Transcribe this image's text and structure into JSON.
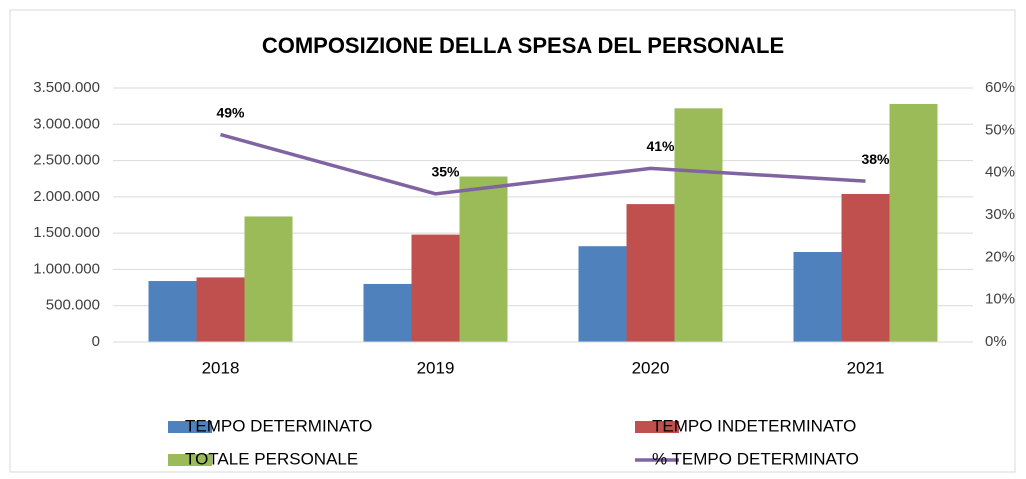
{
  "chart_data": {
    "type": "bar",
    "title": "COMPOSIZIONE DELLA SPESA DEL PERSONALE",
    "categories": [
      "2018",
      "2019",
      "2020",
      "2021"
    ],
    "series": [
      {
        "name": "TEMPO DETERMINATO",
        "color": "#4f81bd",
        "values": [
          840000,
          800000,
          1320000,
          1240000
        ]
      },
      {
        "name": "TEMPO INDETERMINATO",
        "color": "#c0504d",
        "values": [
          890000,
          1480000,
          1900000,
          2040000
        ]
      },
      {
        "name": "TOTALE PERSONALE",
        "color": "#9bbb59",
        "values": [
          1730000,
          2280000,
          3220000,
          3280000
        ]
      },
      {
        "name": "% TEMPO DETERMINATO",
        "color": "#8064a2",
        "type": "line",
        "axis": "y2",
        "values": [
          49,
          35,
          41,
          38
        ],
        "value_labels": [
          "49%",
          "35%",
          "41%",
          "38%"
        ]
      }
    ],
    "ylim": [
      0,
      3500000
    ],
    "yticks": [
      0,
      {
        "value": 500000,
        "label": "500.000"
      },
      {
        "value": 1000000,
        "label": "1.000.000"
      },
      {
        "value": 1500000,
        "label": "1.500.000"
      },
      {
        "value": 2000000,
        "label": "2.000.000"
      },
      {
        "value": 2500000,
        "label": "2.500.000"
      },
      {
        "value": 3000000,
        "label": "3.000.000"
      },
      {
        "value": 3500000,
        "label": "3.500.000"
      }
    ],
    "y2lim": [
      0,
      60
    ],
    "y2ticks": [
      {
        "value": 0,
        "label": "0%"
      },
      {
        "value": 10,
        "label": "10%"
      },
      {
        "value": 20,
        "label": "20%"
      },
      {
        "value": 30,
        "label": "30%"
      },
      {
        "value": 40,
        "label": "40%"
      },
      {
        "value": 50,
        "label": "50%"
      },
      {
        "value": 60,
        "label": "60%"
      }
    ],
    "grid": true,
    "legend": "bottom"
  }
}
